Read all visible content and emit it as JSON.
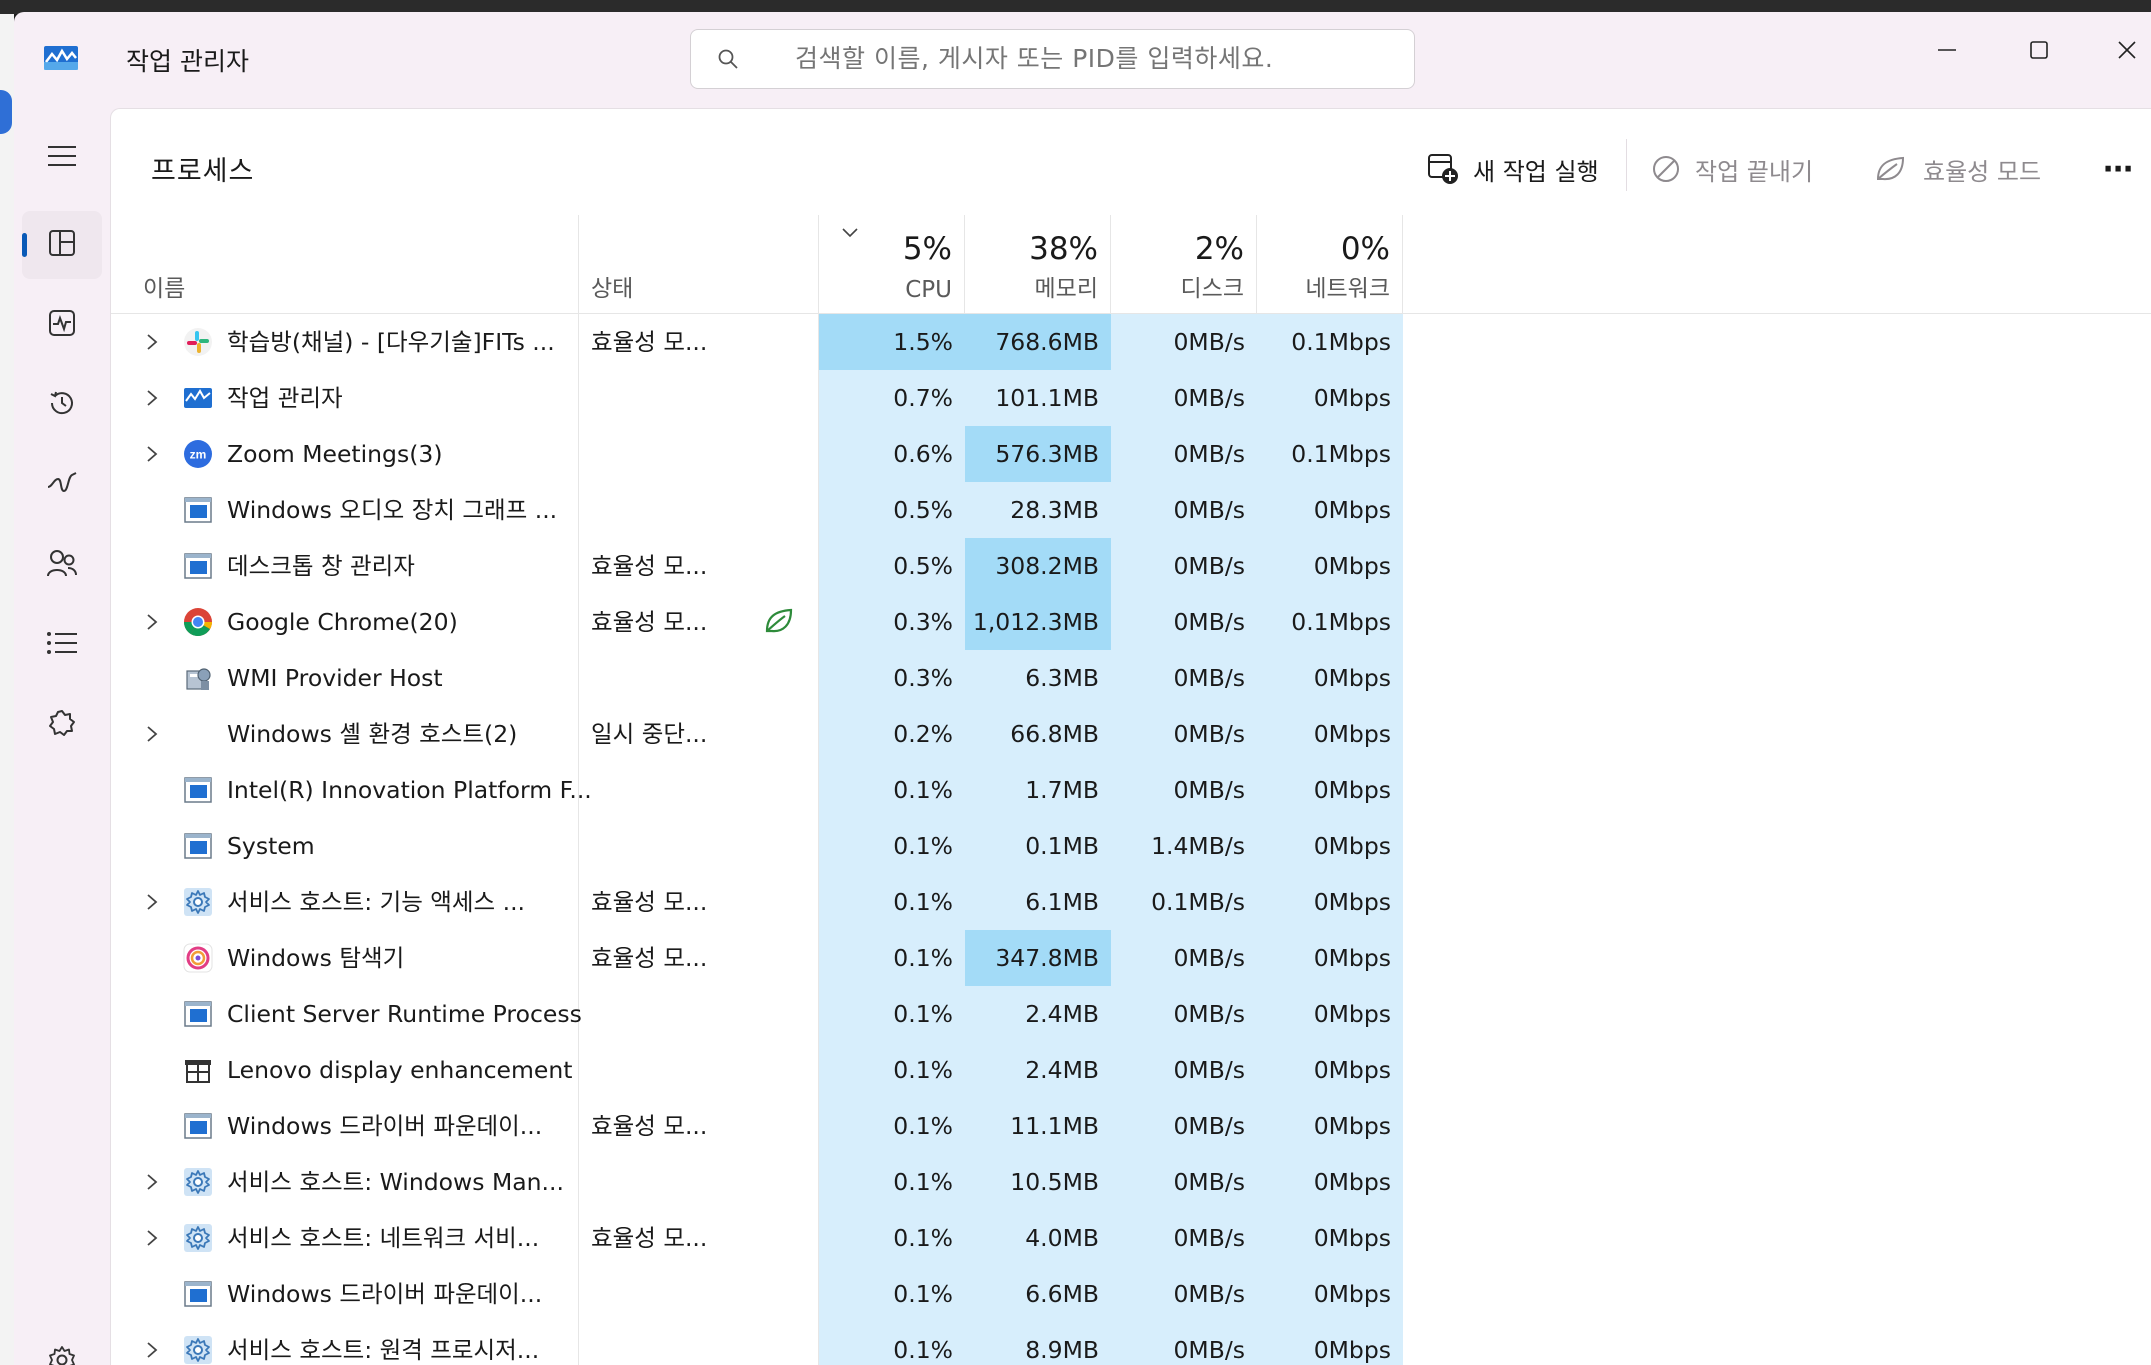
{
  "window": {
    "title": "작업 관리자"
  },
  "search": {
    "placeholder": "검색할 이름, 게시자 또는 PID를 입력하세요."
  },
  "page": {
    "title": "프로세스"
  },
  "toolbar": {
    "new_task": "새 작업 실행",
    "end_task": "작업 끝내기",
    "efficiency": "효율성 모드",
    "more": "⋯"
  },
  "columns": {
    "name": "이름",
    "status": "상태",
    "cpu": {
      "pct": "5%",
      "label": "CPU"
    },
    "memory": {
      "pct": "38%",
      "label": "메모리"
    },
    "disk": {
      "pct": "2%",
      "label": "디스크"
    },
    "network": {
      "pct": "0%",
      "label": "네트워크"
    }
  },
  "processes": [
    {
      "name": "학습방(채널) - [다우기술]FITs ...",
      "icon": "slack-icon",
      "expandable": true,
      "status": "효율성 모...",
      "eco": false,
      "cpu": "1.5%",
      "mem": "768.6MB",
      "disk": "0MB/s",
      "net": "0.1Mbps",
      "cpu_hi": true,
      "mem_hi": true
    },
    {
      "name": "작업 관리자",
      "icon": "taskmgr-icon",
      "expandable": true,
      "status": "",
      "eco": false,
      "cpu": "0.7%",
      "mem": "101.1MB",
      "disk": "0MB/s",
      "net": "0Mbps",
      "cpu_hi": false,
      "mem_hi": false
    },
    {
      "name": "Zoom Meetings(3)",
      "icon": "zoom-icon",
      "expandable": true,
      "status": "",
      "eco": false,
      "cpu": "0.6%",
      "mem": "576.3MB",
      "disk": "0MB/s",
      "net": "0.1Mbps",
      "cpu_hi": false,
      "mem_hi": true
    },
    {
      "name": "Windows 오디오 장치 그래프 ...",
      "icon": "window-icon",
      "expandable": false,
      "status": "",
      "eco": false,
      "cpu": "0.5%",
      "mem": "28.3MB",
      "disk": "0MB/s",
      "net": "0Mbps",
      "cpu_hi": false,
      "mem_hi": false
    },
    {
      "name": "데스크톱 창 관리자",
      "icon": "window-icon",
      "expandable": false,
      "status": "효율성 모...",
      "eco": false,
      "cpu": "0.5%",
      "mem": "308.2MB",
      "disk": "0MB/s",
      "net": "0Mbps",
      "cpu_hi": false,
      "mem_hi": true
    },
    {
      "name": "Google Chrome(20)",
      "icon": "chrome-icon",
      "expandable": true,
      "status": "효율성 모...",
      "eco": true,
      "cpu": "0.3%",
      "mem": "1,012.3MB",
      "disk": "0MB/s",
      "net": "0.1Mbps",
      "cpu_hi": false,
      "mem_hi": true
    },
    {
      "name": "WMI Provider Host",
      "icon": "wmi-icon",
      "expandable": false,
      "status": "",
      "eco": false,
      "cpu": "0.3%",
      "mem": "6.3MB",
      "disk": "0MB/s",
      "net": "0Mbps",
      "cpu_hi": false,
      "mem_hi": false
    },
    {
      "name": "Windows 셸 환경 호스트(2)",
      "icon": "",
      "expandable": true,
      "status": "일시 중단...",
      "eco": false,
      "cpu": "0.2%",
      "mem": "66.8MB",
      "disk": "0MB/s",
      "net": "0Mbps",
      "cpu_hi": false,
      "mem_hi": false
    },
    {
      "name": "Intel(R) Innovation Platform F...",
      "icon": "window-icon",
      "expandable": false,
      "status": "",
      "eco": false,
      "cpu": "0.1%",
      "mem": "1.7MB",
      "disk": "0MB/s",
      "net": "0Mbps",
      "cpu_hi": false,
      "mem_hi": false
    },
    {
      "name": "System",
      "icon": "window-icon",
      "expandable": false,
      "status": "",
      "eco": false,
      "cpu": "0.1%",
      "mem": "0.1MB",
      "disk": "1.4MB/s",
      "net": "0Mbps",
      "cpu_hi": false,
      "mem_hi": false
    },
    {
      "name": "서비스 호스트: 기능 액세스 ...",
      "icon": "service-gear-icon",
      "expandable": true,
      "status": "효율성 모...",
      "eco": false,
      "cpu": "0.1%",
      "mem": "6.1MB",
      "disk": "0.1MB/s",
      "net": "0Mbps",
      "cpu_hi": false,
      "mem_hi": false
    },
    {
      "name": "Windows 탐색기",
      "icon": "explorer-icon",
      "expandable": false,
      "status": "효율성 모...",
      "eco": false,
      "cpu": "0.1%",
      "mem": "347.8MB",
      "disk": "0MB/s",
      "net": "0Mbps",
      "cpu_hi": false,
      "mem_hi": true
    },
    {
      "name": "Client Server Runtime Process",
      "icon": "window-icon",
      "expandable": false,
      "status": "",
      "eco": false,
      "cpu": "0.1%",
      "mem": "2.4MB",
      "disk": "0MB/s",
      "net": "0Mbps",
      "cpu_hi": false,
      "mem_hi": false
    },
    {
      "name": "Lenovo display enhancement",
      "icon": "lenovo-icon",
      "expandable": false,
      "status": "",
      "eco": false,
      "cpu": "0.1%",
      "mem": "2.4MB",
      "disk": "0MB/s",
      "net": "0Mbps",
      "cpu_hi": false,
      "mem_hi": false
    },
    {
      "name": "Windows 드라이버 파운데이...",
      "icon": "window-icon",
      "expandable": false,
      "status": "효율성 모...",
      "eco": false,
      "cpu": "0.1%",
      "mem": "11.1MB",
      "disk": "0MB/s",
      "net": "0Mbps",
      "cpu_hi": false,
      "mem_hi": false
    },
    {
      "name": "서비스 호스트: Windows Man...",
      "icon": "service-gear-icon",
      "expandable": true,
      "status": "",
      "eco": false,
      "cpu": "0.1%",
      "mem": "10.5MB",
      "disk": "0MB/s",
      "net": "0Mbps",
      "cpu_hi": false,
      "mem_hi": false
    },
    {
      "name": "서비스 호스트: 네트워크 서비...",
      "icon": "service-gear-icon",
      "expandable": true,
      "status": "효율성 모...",
      "eco": false,
      "cpu": "0.1%",
      "mem": "4.0MB",
      "disk": "0MB/s",
      "net": "0Mbps",
      "cpu_hi": false,
      "mem_hi": false
    },
    {
      "name": "Windows 드라이버 파운데이...",
      "icon": "window-icon",
      "expandable": false,
      "status": "",
      "eco": false,
      "cpu": "0.1%",
      "mem": "6.6MB",
      "disk": "0MB/s",
      "net": "0Mbps",
      "cpu_hi": false,
      "mem_hi": false
    },
    {
      "name": "서비스 호스트: 원격 프로시저...",
      "icon": "service-gear-icon",
      "expandable": true,
      "status": "",
      "eco": false,
      "cpu": "0.1%",
      "mem": "8.9MB",
      "disk": "0MB/s",
      "net": "0Mbps",
      "cpu_hi": false,
      "mem_hi": false
    }
  ],
  "colors": {
    "heat_low": "#d7eefc",
    "heat_high": "#a3dbf7",
    "accent": "#0a5ab7"
  }
}
